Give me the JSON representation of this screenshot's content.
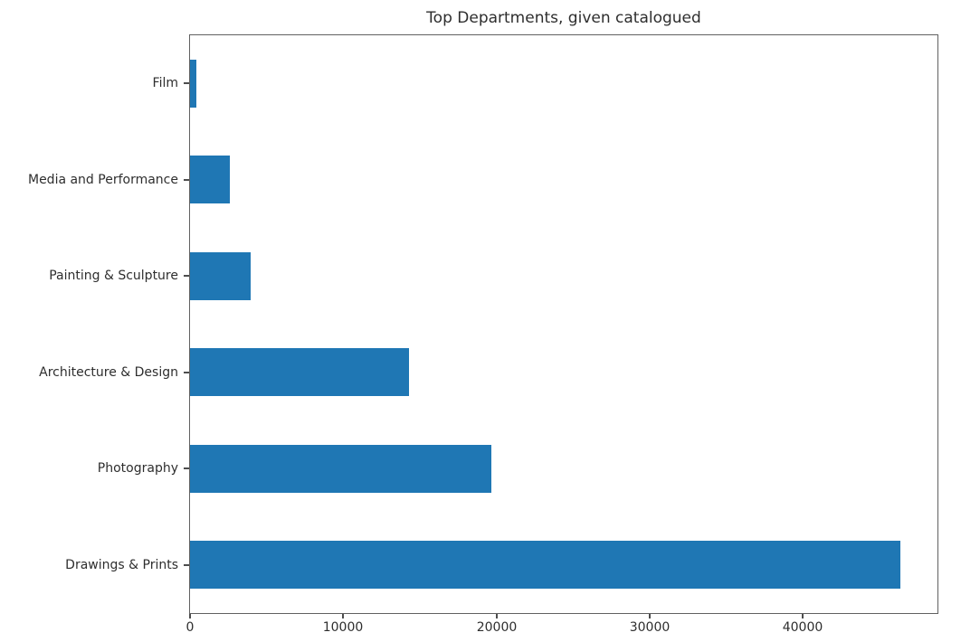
{
  "chart_data": {
    "type": "bar",
    "orientation": "horizontal",
    "title": "Top Departments, given catalogued",
    "categories_top_to_bottom": [
      "Film",
      "Media and Performance",
      "Painting & Sculpture",
      "Architecture & Design",
      "Photography",
      "Drawings & Prints"
    ],
    "values_top_to_bottom": [
      400,
      2600,
      3950,
      14300,
      19700,
      46400
    ],
    "xlabel": "",
    "ylabel": "",
    "x_ticks": [
      0,
      10000,
      20000,
      30000,
      40000
    ],
    "x_tick_labels": [
      "0",
      "10000",
      "20000",
      "30000",
      "40000"
    ],
    "xlim": [
      0,
      48800
    ],
    "bar_color": "#1f77b4",
    "bar_height_fraction": 0.5,
    "grid": false,
    "legend": false
  }
}
